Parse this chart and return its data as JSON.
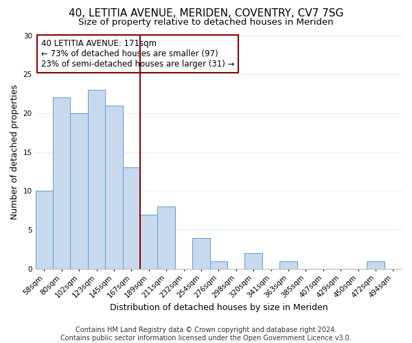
{
  "title": "40, LETITIA AVENUE, MERIDEN, COVENTRY, CV7 7SG",
  "subtitle": "Size of property relative to detached houses in Meriden",
  "xlabel": "Distribution of detached houses by size in Meriden",
  "ylabel": "Number of detached properties",
  "bin_labels": [
    "58sqm",
    "80sqm",
    "102sqm",
    "123sqm",
    "145sqm",
    "167sqm",
    "189sqm",
    "211sqm",
    "232sqm",
    "254sqm",
    "276sqm",
    "298sqm",
    "320sqm",
    "341sqm",
    "363sqm",
    "385sqm",
    "407sqm",
    "429sqm",
    "450sqm",
    "472sqm",
    "494sqm"
  ],
  "counts": [
    10,
    22,
    20,
    23,
    21,
    13,
    7,
    8,
    0,
    4,
    1,
    0,
    2,
    0,
    1,
    0,
    0,
    0,
    0,
    1,
    0
  ],
  "bar_color": "#c8d9ee",
  "bar_edge_color": "#5b9bd5",
  "marker_line_color": "#8b0000",
  "annotation_line1": "40 LETITIA AVENUE: 171sqm",
  "annotation_line2": "← 73% of detached houses are smaller (97)",
  "annotation_line3": "23% of semi-detached houses are larger (31) →",
  "annotation_box_color": "#ffffff",
  "annotation_box_edge": "#8b0000",
  "ylim": [
    0,
    30
  ],
  "yticks": [
    0,
    5,
    10,
    15,
    20,
    25,
    30
  ],
  "footer_line1": "Contains HM Land Registry data © Crown copyright and database right 2024.",
  "footer_line2": "Contains public sector information licensed under the Open Government Licence v3.0.",
  "background_color": "#ffffff",
  "grid_color": "#ddeeff",
  "title_fontsize": 11,
  "subtitle_fontsize": 9.5,
  "xlabel_fontsize": 9,
  "ylabel_fontsize": 9,
  "tick_fontsize": 7.5,
  "annotation_fontsize": 8.5,
  "footer_fontsize": 7
}
